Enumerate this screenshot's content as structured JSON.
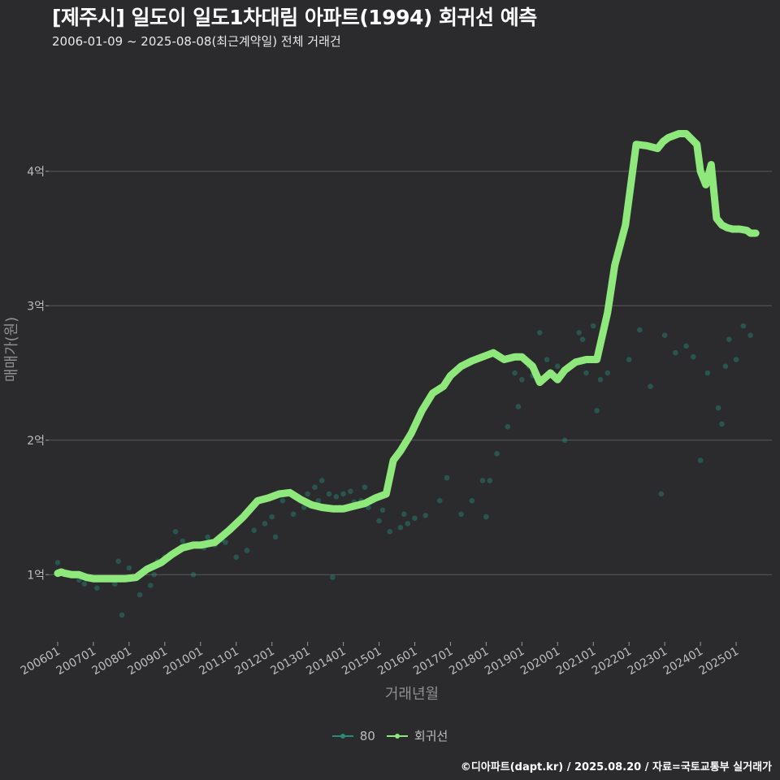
{
  "title": "[제주시] 일도이 일도1차대림 아파트(1994) 회귀선 예측",
  "subtitle": "2006-01-09 ~ 2025-08-08(최근계약일) 전체 거래건",
  "footer": "©디아파트(dapt.kr) / 2025.08.20 / 자료=국토교통부 실거래가",
  "colors": {
    "background": "#2b2a2c",
    "scatter": "#2a8a78",
    "regression": "#8ee87c",
    "grid": "#5a5a5a"
  },
  "chart_data": {
    "type": "scatter",
    "xlabel": "거래년월",
    "ylabel": "매매가(원)",
    "x_tick_labels": [
      "200601",
      "200701",
      "200801",
      "200901",
      "201001",
      "201101",
      "201201",
      "201301",
      "201401",
      "201501",
      "201601",
      "201701",
      "201801",
      "201901",
      "202001",
      "202101",
      "202201",
      "202301",
      "202401",
      "202501"
    ],
    "y_ticks": [
      1,
      2,
      3,
      4
    ],
    "y_tick_labels": [
      "1억",
      "2억",
      "3억",
      "4억"
    ],
    "ylim": [
      0.5,
      4.7
    ],
    "xlim": [
      2005.75,
      2026.0
    ],
    "legend": [
      {
        "name": "80",
        "color": "#2a8a78"
      },
      {
        "name": "회귀선",
        "color": "#8ee87c"
      }
    ],
    "series": [
      {
        "name": "80",
        "kind": "points",
        "x": [
          2006.0,
          2006.05,
          2006.3,
          2006.6,
          2006.75,
          2006.9,
          2007.1,
          2007.2,
          2007.5,
          2007.6,
          2007.7,
          2007.8,
          2008.0,
          2008.3,
          2008.6,
          2008.7,
          2008.8,
          2009.0,
          2009.3,
          2009.5,
          2009.8,
          2010.1,
          2010.2,
          2010.4,
          2010.6,
          2010.7,
          2011.0,
          2011.3,
          2011.5,
          2011.8,
          2012.0,
          2012.1,
          2012.3,
          2012.6,
          2012.9,
          2013.0,
          2013.2,
          2013.3,
          2013.4,
          2013.6,
          2013.7,
          2013.8,
          2013.9,
          2014.0,
          2014.2,
          2014.3,
          2014.5,
          2014.6,
          2014.7,
          2015.0,
          2015.1,
          2015.3,
          2015.6,
          2015.7,
          2015.8,
          2016.0,
          2016.3,
          2016.7,
          2016.9,
          2017.3,
          2017.6,
          2017.9,
          2018.0,
          2018.1,
          2018.3,
          2018.6,
          2018.8,
          2018.9,
          2019.0,
          2019.2,
          2019.3,
          2019.5,
          2019.7,
          2020.0,
          2020.2,
          2020.3,
          2020.6,
          2020.7,
          2020.8,
          2021.0,
          2021.1,
          2021.2,
          2021.4,
          2022.0,
          2022.3,
          2022.6,
          2022.9,
          2023.0,
          2023.3,
          2023.6,
          2023.8,
          2024.0,
          2024.2,
          2024.5,
          2024.6,
          2024.7,
          2024.8,
          2025.0,
          2025.2,
          2025.4
        ],
        "values": [
          1.09,
          1.02,
          1.0,
          0.96,
          0.93,
          0.98,
          0.9,
          0.97,
          0.96,
          0.93,
          1.1,
          0.7,
          1.05,
          0.85,
          0.92,
          1.0,
          1.1,
          1.13,
          1.32,
          1.25,
          1.0,
          1.2,
          1.28,
          1.22,
          1.26,
          1.24,
          1.13,
          1.18,
          1.33,
          1.38,
          1.43,
          1.28,
          1.55,
          1.45,
          1.5,
          1.6,
          1.65,
          1.55,
          1.7,
          1.6,
          0.98,
          1.58,
          1.5,
          1.6,
          1.62,
          1.54,
          1.55,
          1.65,
          1.5,
          1.4,
          1.48,
          1.32,
          1.35,
          1.45,
          1.38,
          1.42,
          1.44,
          1.55,
          1.72,
          1.45,
          1.55,
          1.7,
          1.43,
          1.7,
          1.9,
          2.1,
          2.5,
          2.25,
          2.45,
          2.55,
          2.48,
          2.8,
          2.6,
          2.55,
          2.0,
          2.55,
          2.8,
          2.75,
          2.5,
          2.85,
          2.22,
          2.45,
          2.5,
          2.6,
          2.82,
          2.4,
          1.6,
          2.78,
          2.65,
          2.7,
          2.62,
          1.85,
          2.5,
          2.24,
          2.12,
          2.55,
          2.75,
          2.6,
          2.85,
          2.78
        ]
      },
      {
        "name": "회귀선",
        "kind": "line",
        "x": [
          2006.0,
          2006.1,
          2006.2,
          2006.4,
          2006.6,
          2006.8,
          2007.0,
          2007.3,
          2007.6,
          2007.9,
          2008.2,
          2008.5,
          2008.9,
          2009.2,
          2009.5,
          2009.8,
          2010.0,
          2010.4,
          2010.8,
          2011.2,
          2011.6,
          2011.9,
          2012.2,
          2012.5,
          2012.8,
          2013.1,
          2013.4,
          2013.7,
          2014.0,
          2014.3,
          2014.6,
          2014.9,
          2015.2,
          2015.4,
          2015.6,
          2015.9,
          2016.2,
          2016.5,
          2016.8,
          2017.0,
          2017.3,
          2017.6,
          2017.9,
          2018.2,
          2018.5,
          2018.8,
          2019.0,
          2019.3,
          2019.5,
          2019.8,
          2020.0,
          2020.2,
          2020.5,
          2020.8,
          2021.1,
          2021.4,
          2021.6,
          2021.9,
          2022.2,
          2022.5,
          2022.8,
          2022.95,
          2023.1,
          2023.4,
          2023.6,
          2023.9,
          2024.0,
          2024.15,
          2024.3,
          2024.45,
          2024.6,
          2024.75,
          2024.9,
          2025.1,
          2025.3,
          2025.4,
          2025.55
        ],
        "values": [
          1.01,
          1.02,
          1.01,
          1.0,
          1.0,
          0.98,
          0.97,
          0.97,
          0.97,
          0.97,
          0.98,
          1.04,
          1.09,
          1.15,
          1.2,
          1.22,
          1.22,
          1.24,
          1.33,
          1.43,
          1.55,
          1.57,
          1.6,
          1.61,
          1.56,
          1.52,
          1.5,
          1.49,
          1.49,
          1.51,
          1.53,
          1.57,
          1.6,
          1.85,
          1.92,
          2.05,
          2.22,
          2.35,
          2.4,
          2.48,
          2.55,
          2.59,
          2.62,
          2.65,
          2.6,
          2.62,
          2.62,
          2.55,
          2.43,
          2.5,
          2.45,
          2.52,
          2.58,
          2.6,
          2.6,
          2.95,
          3.3,
          3.6,
          4.2,
          4.19,
          4.17,
          4.22,
          4.25,
          4.28,
          4.28,
          4.2,
          4.0,
          3.9,
          4.05,
          3.65,
          3.6,
          3.58,
          3.57,
          3.57,
          3.56,
          3.54,
          3.54
        ]
      }
    ]
  }
}
